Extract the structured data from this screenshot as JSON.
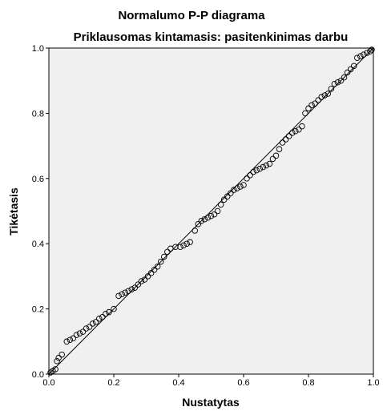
{
  "chart_data": {
    "type": "scatter",
    "title": "Normalumo P-P diagrama",
    "subtitle": "Priklausomas kintamasis: pasitenkinimas darbu",
    "x_label": "Nustatytas",
    "y_label": "Tikėtasis",
    "xlim": [
      0,
      1
    ],
    "ylim": [
      0,
      1
    ],
    "xticks": [
      {
        "value": 0,
        "label": "0.0"
      },
      0.2,
      0.4,
      0.6,
      0.8,
      {
        "value": 1,
        "label": "1.0"
      }
    ],
    "yticks": [
      {
        "value": 0,
        "label": "0.0"
      },
      0.2,
      0.4,
      0.6,
      0.8,
      {
        "value": 1,
        "label": "1.0"
      }
    ],
    "color": "#000000",
    "background": "#f0f0f0",
    "x": [
      0.005,
      0.012,
      0.02,
      0.025,
      0.03,
      0.04,
      0.055,
      0.065,
      0.075,
      0.085,
      0.095,
      0.105,
      0.115,
      0.125,
      0.135,
      0.145,
      0.155,
      0.165,
      0.175,
      0.185,
      0.2,
      0.215,
      0.225,
      0.235,
      0.245,
      0.255,
      0.265,
      0.275,
      0.285,
      0.295,
      0.305,
      0.315,
      0.325,
      0.335,
      0.345,
      0.355,
      0.365,
      0.375,
      0.39,
      0.405,
      0.415,
      0.425,
      0.435,
      0.45,
      0.46,
      0.47,
      0.48,
      0.49,
      0.5,
      0.51,
      0.52,
      0.53,
      0.54,
      0.55,
      0.56,
      0.57,
      0.58,
      0.59,
      0.6,
      0.61,
      0.62,
      0.63,
      0.64,
      0.65,
      0.66,
      0.67,
      0.68,
      0.69,
      0.7,
      0.71,
      0.72,
      0.73,
      0.74,
      0.75,
      0.76,
      0.77,
      0.78,
      0.79,
      0.8,
      0.81,
      0.82,
      0.83,
      0.84,
      0.85,
      0.86,
      0.87,
      0.88,
      0.89,
      0.9,
      0.91,
      0.92,
      0.93,
      0.94,
      0.95,
      0.96,
      0.97,
      0.98,
      0.99,
      0.995
    ],
    "values": [
      0.005,
      0.01,
      0.015,
      0.04,
      0.05,
      0.06,
      0.1,
      0.105,
      0.11,
      0.12,
      0.125,
      0.13,
      0.14,
      0.145,
      0.155,
      0.16,
      0.17,
      0.175,
      0.185,
      0.19,
      0.2,
      0.24,
      0.245,
      0.25,
      0.255,
      0.26,
      0.265,
      0.275,
      0.285,
      0.29,
      0.3,
      0.31,
      0.32,
      0.33,
      0.345,
      0.36,
      0.375,
      0.385,
      0.39,
      0.39,
      0.395,
      0.4,
      0.405,
      0.44,
      0.46,
      0.47,
      0.475,
      0.48,
      0.485,
      0.49,
      0.5,
      0.52,
      0.535,
      0.545,
      0.555,
      0.565,
      0.57,
      0.575,
      0.58,
      0.6,
      0.61,
      0.62,
      0.625,
      0.63,
      0.635,
      0.64,
      0.645,
      0.66,
      0.67,
      0.69,
      0.71,
      0.72,
      0.73,
      0.74,
      0.745,
      0.75,
      0.76,
      0.8,
      0.815,
      0.825,
      0.83,
      0.84,
      0.85,
      0.855,
      0.86,
      0.875,
      0.89,
      0.895,
      0.9,
      0.91,
      0.925,
      0.935,
      0.945,
      0.97,
      0.975,
      0.98,
      0.985,
      0.99,
      0.995
    ]
  }
}
